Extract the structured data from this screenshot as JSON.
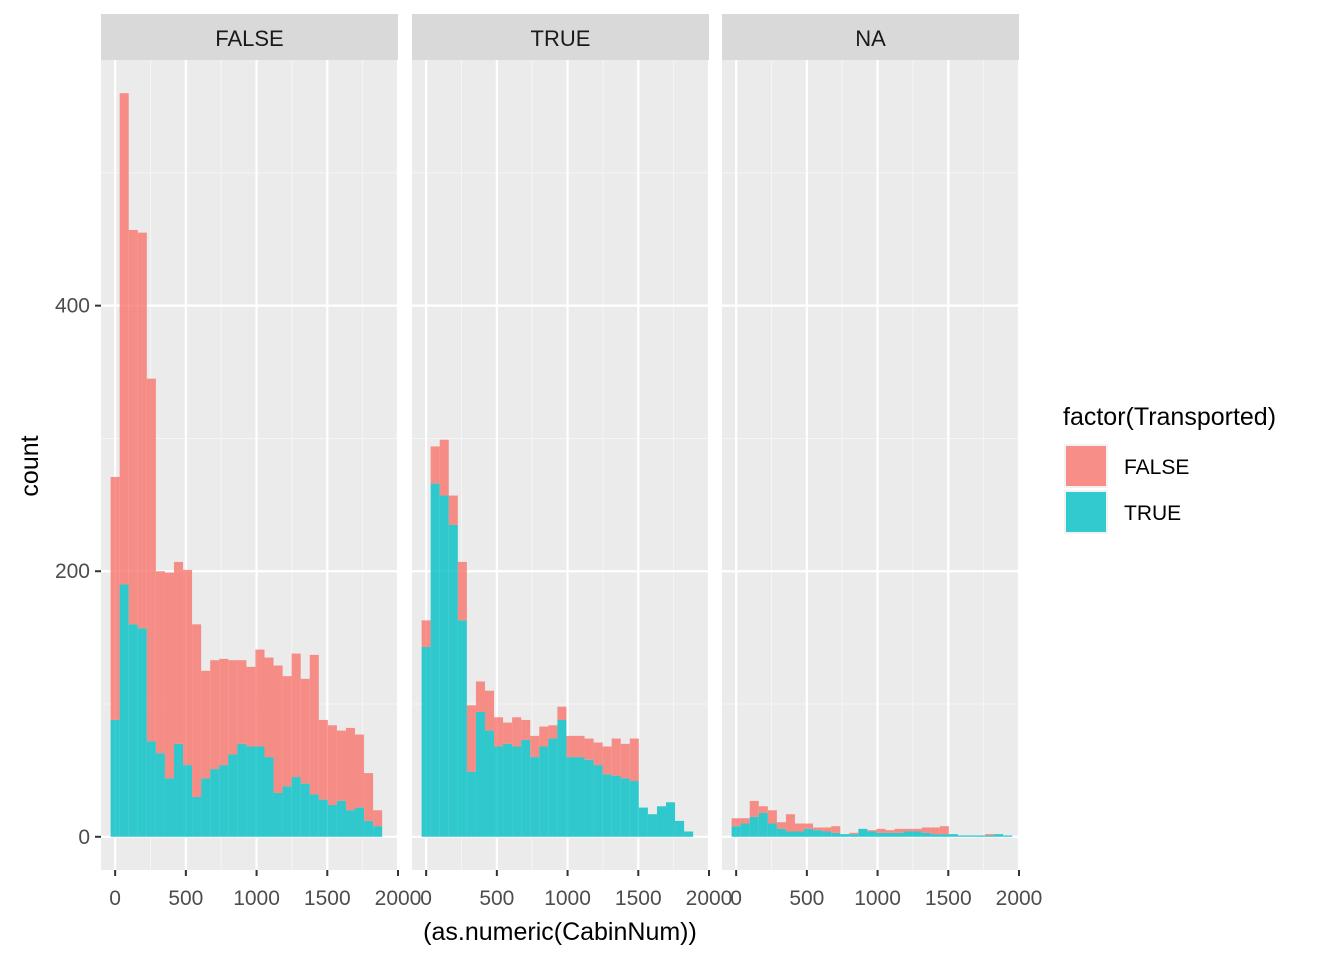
{
  "chart_data": {
    "type": "bar",
    "stacked": true,
    "xlabel": "(as.numeric(CabinNum))",
    "ylabel": "count",
    "xlim": [
      -100,
      2000
    ],
    "ylim": [
      -25,
      585
    ],
    "x_ticks": [
      0,
      500,
      1000,
      1500,
      2000
    ],
    "x_tick_labels": [
      "0",
      "500",
      "1000",
      "1500",
      "2000"
    ],
    "y_ticks": [
      0,
      200,
      400
    ],
    "y_tick_labels": [
      "0",
      "200",
      "400"
    ],
    "bin_width": 64,
    "bin_starts": [
      -32,
      32,
      96,
      160,
      224,
      288,
      352,
      416,
      480,
      544,
      608,
      672,
      736,
      800,
      864,
      928,
      992,
      1056,
      1120,
      1184,
      1248,
      1312,
      1376,
      1440,
      1504,
      1568,
      1632,
      1696,
      1760,
      1824,
      1888
    ],
    "legend": {
      "title": "factor(Transported)",
      "position": "right",
      "entries": [
        {
          "label": "FALSE",
          "color": "#F8766D"
        },
        {
          "label": "TRUE",
          "color": "#00BFC4"
        }
      ]
    },
    "colors": {
      "FALSE": "#F8766D",
      "TRUE": "#00BFC4"
    },
    "panel_background": "#EBEBEB",
    "strip_background": "#D9D9D9",
    "grid": true,
    "panels": [
      {
        "strip": "FALSE",
        "series": [
          {
            "name": "TRUE",
            "values": [
              88,
              190,
              160,
              157,
              72,
              63,
              44,
              70,
              54,
              30,
              44,
              51,
              54,
              62,
              70,
              68,
              68,
              60,
              33,
              38,
              45,
              40,
              32,
              28,
              24,
              27,
              20,
              22,
              12,
              8,
              0
            ]
          },
          {
            "name": "FALSE",
            "values": [
              183,
              370,
              297,
              298,
              273,
              137,
              155,
              137,
              147,
              130,
              81,
              82,
              80,
              71,
              63,
              60,
              73,
              75,
              96,
              83,
              93,
              79,
              105,
              60,
              60,
              53,
              62,
              55,
              36,
              12,
              0
            ]
          }
        ]
      },
      {
        "strip": "TRUE",
        "series": [
          {
            "name": "TRUE",
            "values": [
              143,
              266,
              257,
              235,
              163,
              49,
              94,
              80,
              68,
              70,
              68,
              73,
              60,
              68,
              74,
              88,
              60,
              60,
              58,
              54,
              47,
              46,
              44,
              42,
              22,
              17,
              23,
              26,
              12,
              4,
              0
            ]
          },
          {
            "name": "FALSE",
            "values": [
              20,
              28,
              42,
              22,
              44,
              50,
              23,
              30,
              22,
              16,
              22,
              15,
              16,
              15,
              10,
              10,
              16,
              16,
              16,
              17,
              21,
              28,
              26,
              32,
              0,
              0,
              0,
              0,
              0,
              0,
              0
            ]
          }
        ]
      },
      {
        "strip": "NA",
        "series": [
          {
            "name": "TRUE",
            "values": [
              8,
              10,
              15,
              18,
              10,
              6,
              4,
              4,
              6,
              5,
              4,
              3,
              2,
              2,
              6,
              4,
              3,
              3,
              3,
              4,
              4,
              3,
              2,
              2,
              2,
              1,
              1,
              1,
              1,
              2,
              1
            ]
          },
          {
            "name": "FALSE",
            "values": [
              6,
              4,
              12,
              5,
              10,
              5,
              13,
              6,
              4,
              2,
              3,
              5,
              0,
              1,
              0,
              1,
              3,
              2,
              3,
              2,
              2,
              4,
              5,
              6,
              0,
              0,
              0,
              0,
              1,
              0,
              0
            ]
          }
        ]
      }
    ]
  }
}
